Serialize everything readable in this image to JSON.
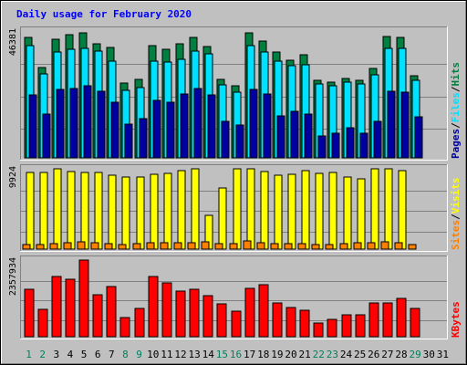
{
  "chart_data": [
    {
      "type": "bar",
      "title": "Daily usage for February 2020",
      "categories": [
        "1",
        "2",
        "3",
        "4",
        "5",
        "6",
        "7",
        "8",
        "9",
        "10",
        "11",
        "12",
        "13",
        "14",
        "15",
        "16",
        "17",
        "18",
        "19",
        "20",
        "21",
        "22",
        "23",
        "24",
        "25",
        "26",
        "27",
        "28",
        "29",
        "30",
        "31"
      ],
      "weekend_days": [
        "1",
        "2",
        "8",
        "9",
        "15",
        "16",
        "22",
        "23",
        "29"
      ],
      "y_max_label": "46381",
      "ylim": [
        0,
        46381
      ],
      "legend": [
        "Pages",
        "Files",
        "Hits"
      ],
      "series": [
        {
          "name": "Hits",
          "color": "#008040",
          "values": [
            44000,
            33000,
            43500,
            45200,
            45600,
            41600,
            40500,
            27200,
            28600,
            41000,
            39700,
            41800,
            44000,
            40700,
            28800,
            26300,
            45800,
            42800,
            38700,
            35700,
            37600,
            28500,
            27800,
            29000,
            28500,
            32700,
            44300,
            44000,
            30100,
            null,
            null
          ]
        },
        {
          "name": "Files",
          "color": "#00e0ff",
          "values": [
            41000,
            30600,
            38700,
            39800,
            40200,
            38900,
            35500,
            24700,
            25800,
            35300,
            35200,
            36000,
            39000,
            37900,
            26800,
            24000,
            41000,
            38600,
            35500,
            33600,
            34000,
            27000,
            26200,
            27800,
            27100,
            30400,
            40100,
            40100,
            28200,
            null,
            null
          ]
        },
        {
          "name": "Pages",
          "color": "#0000a0",
          "values": [
            23000,
            16000,
            25000,
            25500,
            26500,
            24500,
            20500,
            12500,
            14500,
            21000,
            20500,
            23500,
            25500,
            23000,
            13500,
            12000,
            25000,
            23500,
            15500,
            17000,
            16000,
            8000,
            9000,
            11000,
            9000,
            13500,
            24500,
            24000,
            15000,
            null,
            null
          ]
        }
      ]
    },
    {
      "type": "bar",
      "y_max_label": "9924",
      "ylim": [
        0,
        9924
      ],
      "legend": [
        "Sites",
        "Visits"
      ],
      "series": [
        {
          "name": "Visits",
          "color": "#ffff00",
          "values": [
            9500,
            9500,
            9924,
            9600,
            9500,
            9500,
            9100,
            8900,
            8900,
            9200,
            9400,
            9700,
            9900,
            4200,
            7500,
            9900,
            9924,
            9600,
            9100,
            9300,
            9700,
            9400,
            9500,
            8900,
            8700,
            9924,
            9924,
            9700,
            null,
            null,
            null
          ]
        },
        {
          "name": "Sites",
          "color": "#ff8000",
          "values": [
            600,
            600,
            700,
            800,
            900,
            800,
            700,
            600,
            700,
            800,
            800,
            800,
            800,
            900,
            700,
            700,
            1000,
            800,
            700,
            700,
            700,
            600,
            600,
            700,
            800,
            800,
            900,
            800,
            600,
            null,
            null
          ]
        }
      ]
    },
    {
      "type": "bar",
      "y_max_label": "2357934",
      "ylim": [
        0,
        2357934
      ],
      "legend": [
        "KBytes"
      ],
      "series": [
        {
          "name": "KBytes",
          "color": "#ff0000",
          "values": [
            1448000,
            830000,
            1860000,
            1760000,
            2357934,
            1280000,
            1540000,
            580000,
            880000,
            1850000,
            1660000,
            1390000,
            1450000,
            1270000,
            1000000,
            790000,
            1500000,
            1610000,
            1040000,
            900000,
            810000,
            430000,
            540000,
            680000,
            670000,
            1040000,
            1030000,
            1180000,
            880000,
            null,
            null
          ]
        }
      ]
    }
  ],
  "colors": {
    "background": "#c0c0c0",
    "title": "#0000ff",
    "weekday_label": "#000000",
    "weekend_label": "#00805c"
  }
}
